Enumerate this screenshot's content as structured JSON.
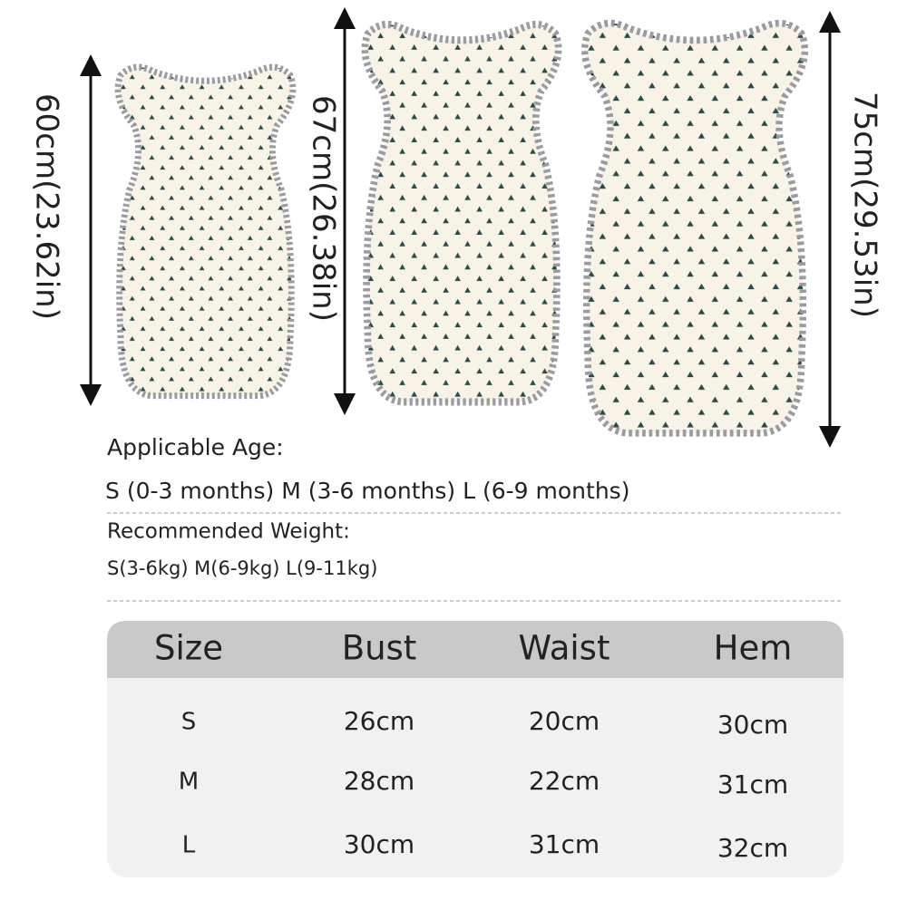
{
  "size_labels": [
    "60cm(23.62in)",
    "67cm(26.38in)",
    "75cm(29.53in)"
  ],
  "age": {
    "title": "Applicable Age:",
    "text": "S (0-3 months) M (3-6 months) L (6-9 months)"
  },
  "weight": {
    "title": "Recommended Weight:",
    "text": "S(3-6kg) M(6-9kg) L(9-11kg)"
  },
  "table": {
    "header": [
      "Size",
      "Bust",
      "Waist",
      "Hem"
    ],
    "rows": [
      [
        "S",
        "26cm",
        "20cm",
        "30cm"
      ],
      [
        "M",
        "28cm",
        "22cm",
        "31cm"
      ],
      [
        "L",
        "30cm",
        "31cm",
        "32cm"
      ]
    ]
  }
}
